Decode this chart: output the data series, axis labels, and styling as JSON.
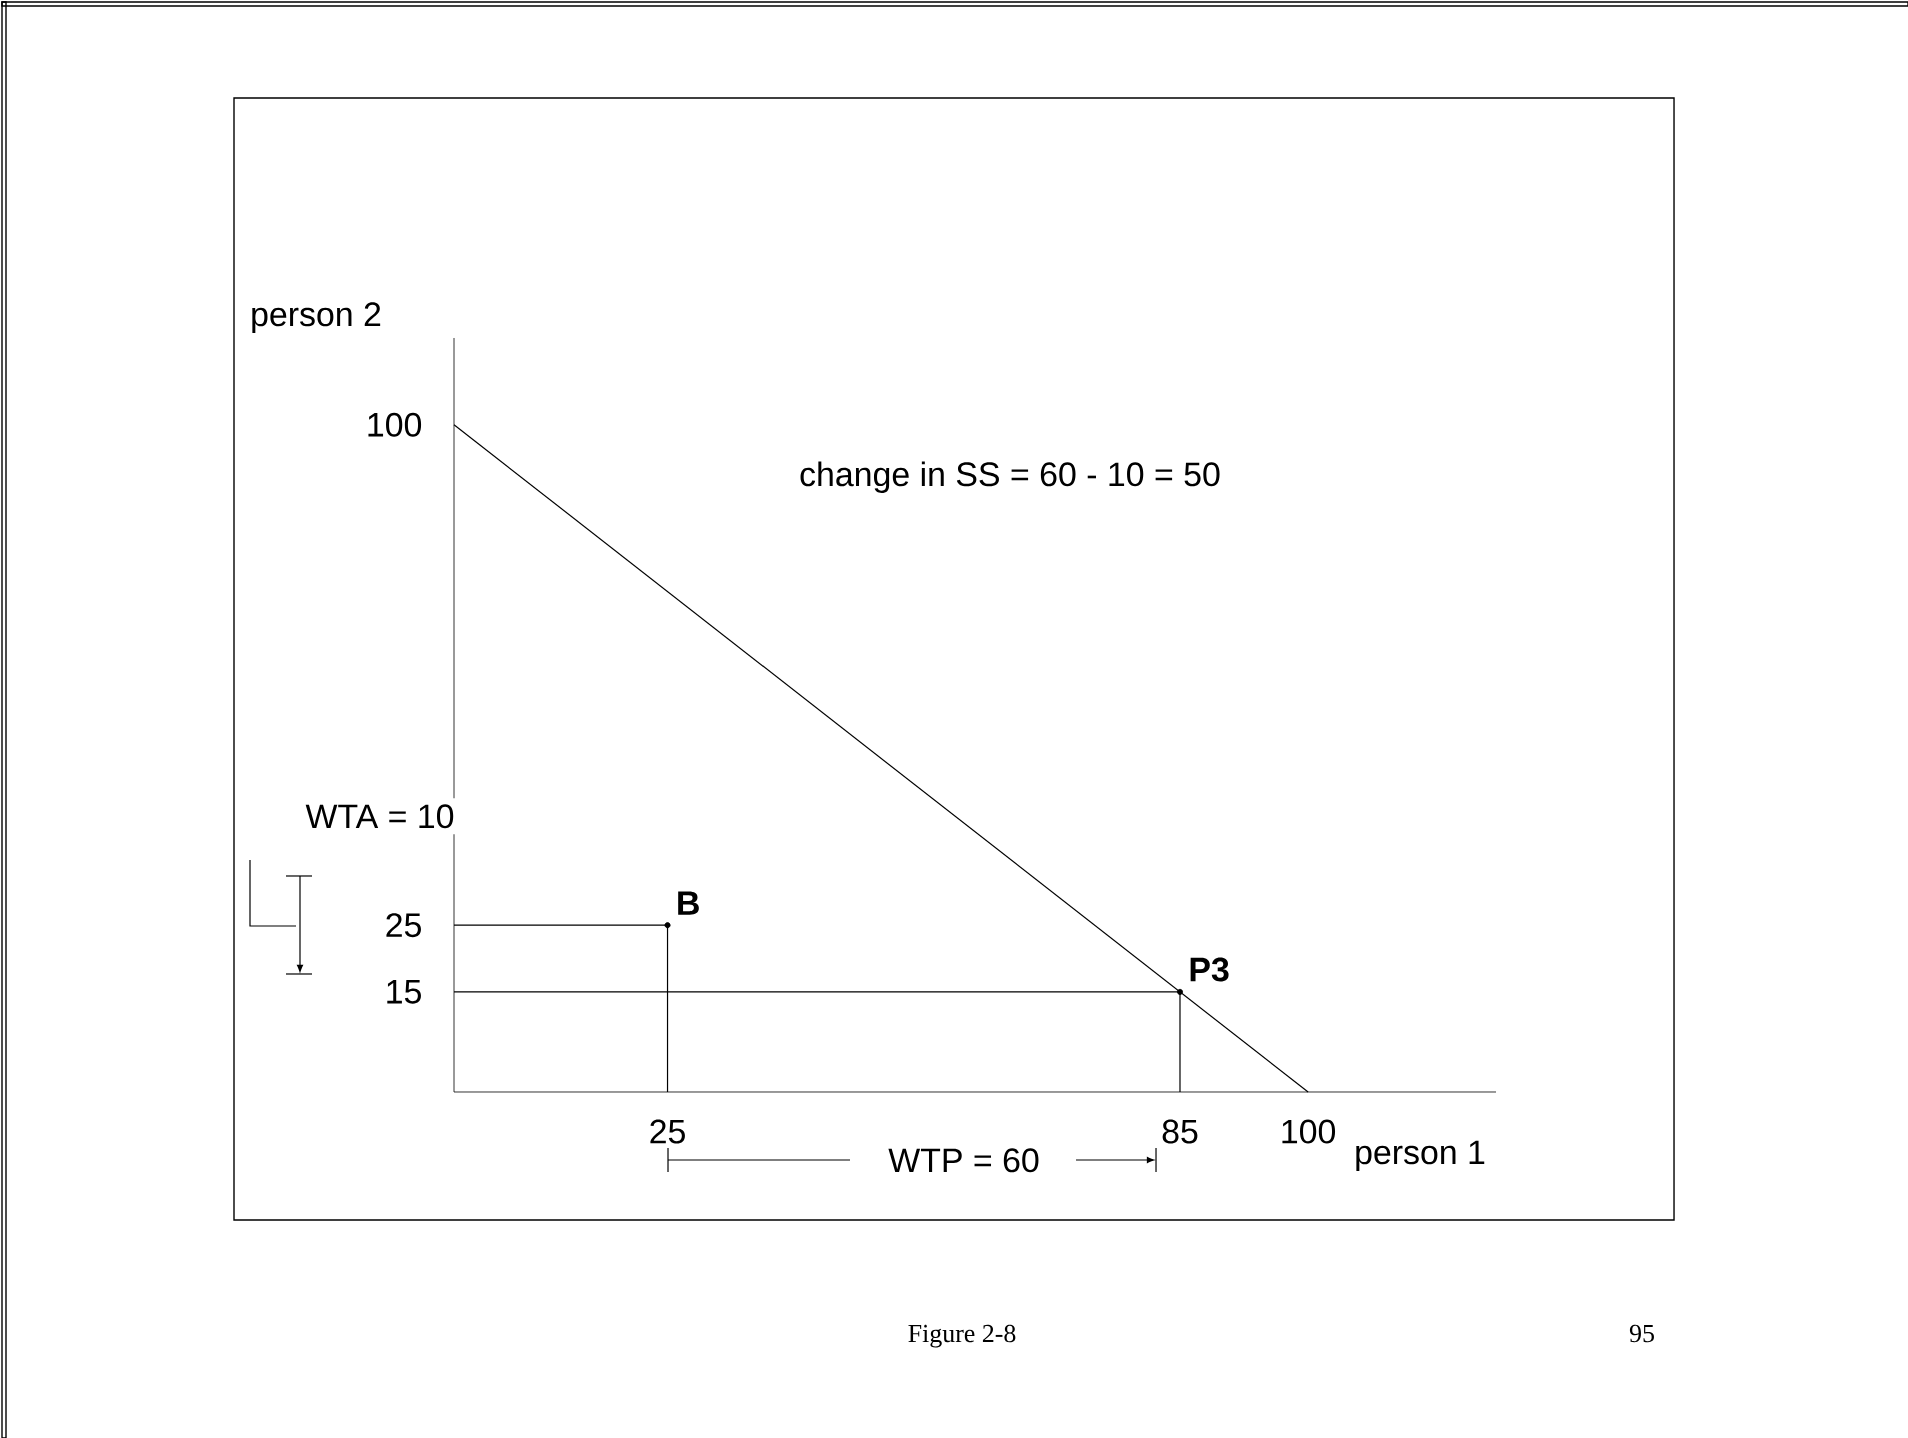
{
  "chart_data": {
    "type": "line",
    "xlabel": "person 1",
    "ylabel": "person 2",
    "xlim": [
      0,
      122
    ],
    "ylim": [
      0,
      113
    ],
    "xticks": [
      25,
      85,
      100
    ],
    "yticks": [
      15,
      25,
      100
    ],
    "series": [
      {
        "color": "#000000",
        "x": [
          0,
          100
        ],
        "values": [
          100,
          0
        ]
      },
      {
        "type": "line",
        "color": "#000000",
        "x": [
          0,
          25,
          25
        ],
        "values": [
          25,
          25,
          0
        ]
      },
      {
        "type": "line",
        "color": "#000000",
        "x": [
          0,
          85,
          85
        ],
        "values": [
          15,
          15,
          0
        ]
      },
      {
        "type": "scatter",
        "color": "#000000",
        "marker": "circle",
        "x": [
          25,
          85
        ],
        "values": [
          25,
          15
        ]
      }
    ],
    "annotations": [
      "change in SS = 60 - 10 = 50",
      {
        "text": "**B**",
        "x": 25,
        "y": 25
      },
      {
        "text": "**P3**",
        "x": 85,
        "y": 15
      },
      "WTA = 10",
      "WTP = 60",
      "Figure 2-8",
      "95"
    ]
  }
}
